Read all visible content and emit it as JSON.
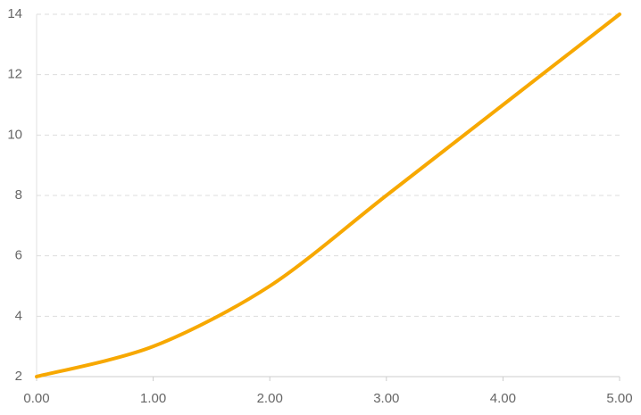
{
  "chart_data": {
    "type": "line",
    "x": [
      0,
      1,
      2,
      3,
      4,
      5
    ],
    "series": [
      {
        "color": "#f7a800",
        "values": [
          2,
          3,
          5,
          8,
          11,
          14
        ]
      }
    ],
    "xlim": [
      0,
      5
    ],
    "xticks": [
      {
        "value": 0,
        "label": "0.00"
      },
      {
        "value": 1,
        "label": "1.00"
      },
      {
        "value": 2,
        "label": "2.00"
      },
      {
        "value": 3,
        "label": "3.00"
      },
      {
        "value": 4,
        "label": "4.00"
      },
      {
        "value": 5,
        "label": "5.00"
      }
    ],
    "ylim": [
      2,
      14
    ],
    "yticks": [
      2,
      4,
      6,
      8,
      10,
      12,
      14
    ],
    "grid": true
  }
}
